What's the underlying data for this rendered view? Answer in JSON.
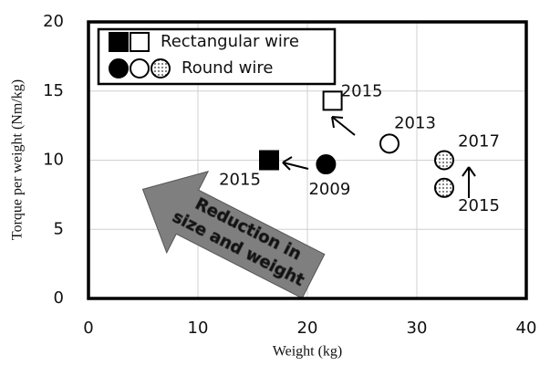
{
  "chart_data": {
    "type": "scatter",
    "xlabel": "Weight (kg)",
    "ylabel": "Torque per weight (Nm/kg)",
    "xlim": [
      0,
      40
    ],
    "xticks": [
      0,
      10,
      20,
      30,
      40
    ],
    "ylim": [
      0,
      20
    ],
    "yticks": [
      0,
      5,
      10,
      15,
      20
    ],
    "grid": true,
    "legend": "upper left",
    "series": [
      {
        "name": "Rectangular wire",
        "shape": "square",
        "color": "#000000",
        "x": [
          16.5,
          22.3
        ],
        "y": [
          10,
          14.3
        ],
        "fills": [
          "filled",
          "open"
        ],
        "labels": [
          "2015",
          "2015"
        ]
      },
      {
        "name": "Round wire",
        "shape": "circle",
        "color": "#000000",
        "x": [
          21.7,
          27.5,
          32.5,
          32.5
        ],
        "y": [
          9.7,
          11.2,
          10,
          8
        ],
        "fills": [
          "filled",
          "open",
          "dotted",
          "dotted"
        ],
        "labels": [
          "2009",
          "2013",
          "2017",
          "2015"
        ]
      }
    ],
    "annotation": [
      "Reduction in",
      "size and weight"
    ]
  }
}
